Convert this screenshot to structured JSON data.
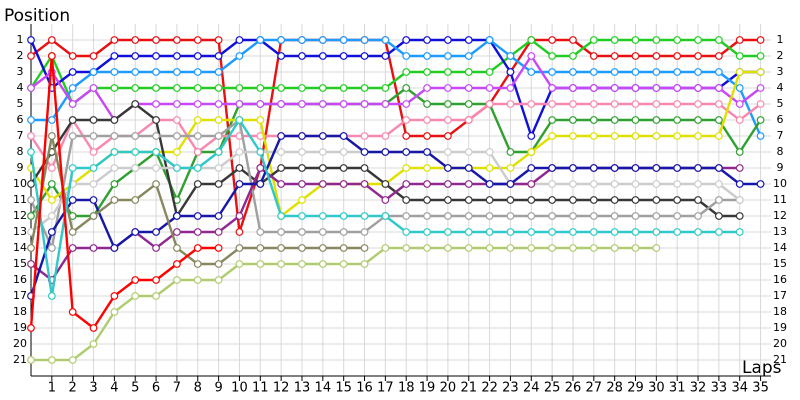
{
  "chart_data": {
    "type": "line",
    "y_label": "Position",
    "x_label": "Laps",
    "x": [
      0,
      1,
      2,
      3,
      4,
      5,
      6,
      7,
      8,
      9,
      10,
      11,
      12,
      13,
      14,
      15,
      16,
      17,
      18,
      19,
      20,
      21,
      22,
      23,
      24,
      25,
      26,
      27,
      28,
      29,
      30,
      31,
      32,
      33,
      34,
      35
    ],
    "xlim": [
      0,
      35.5
    ],
    "xticks": [
      1,
      2,
      3,
      4,
      5,
      6,
      7,
      8,
      9,
      10,
      11,
      12,
      13,
      14,
      15,
      16,
      17,
      18,
      19,
      20,
      21,
      22,
      23,
      24,
      25,
      26,
      27,
      28,
      29,
      30,
      31,
      32,
      33,
      34,
      35
    ],
    "ylim": [
      22,
      0
    ],
    "yticks": [
      1,
      2,
      3,
      4,
      5,
      6,
      7,
      8,
      9,
      10,
      11,
      12,
      13,
      14,
      15,
      16,
      17,
      18,
      19,
      20,
      21
    ],
    "grid": true,
    "series": [
      {
        "color": "#e81010",
        "values": [
          2,
          1,
          2,
          2,
          1,
          1,
          1,
          1,
          1,
          1,
          13,
          9,
          1,
          1,
          1,
          1,
          1,
          1,
          7,
          7,
          7,
          6,
          5,
          3,
          1,
          1,
          1,
          2,
          2,
          2,
          2,
          2,
          2,
          2,
          1,
          1
        ]
      },
      {
        "color": "#22cc22",
        "values": [
          4,
          2,
          5,
          4,
          4,
          4,
          4,
          4,
          4,
          4,
          4,
          4,
          4,
          4,
          4,
          4,
          4,
          4,
          3,
          3,
          3,
          3,
          3,
          2,
          1,
          2,
          2,
          1,
          1,
          1,
          1,
          1,
          1,
          1,
          2,
          2
        ]
      },
      {
        "color": "#1010d8",
        "values": [
          1,
          4,
          3,
          3,
          2,
          2,
          2,
          2,
          2,
          2,
          1,
          1,
          2,
          2,
          2,
          2,
          2,
          2,
          1,
          1,
          1,
          1,
          1,
          3,
          7,
          4,
          4,
          4,
          4,
          4,
          4,
          4,
          4,
          4,
          3,
          3
        ]
      },
      {
        "color": "#1e9bff",
        "values": [
          6,
          6,
          4,
          3,
          3,
          3,
          3,
          3,
          3,
          3,
          2,
          1,
          1,
          1,
          1,
          1,
          1,
          1,
          2,
          2,
          2,
          2,
          1,
          2,
          3,
          3,
          3,
          3,
          3,
          3,
          3,
          3,
          3,
          3,
          4,
          7
        ]
      },
      {
        "color": "#30a030",
        "values": [
          12,
          10,
          12,
          12,
          10,
          9,
          8,
          11,
          8,
          8,
          5,
          5,
          5,
          5,
          5,
          5,
          5,
          5,
          4,
          5,
          5,
          5,
          5,
          8,
          8,
          6,
          6,
          6,
          6,
          6,
          6,
          6,
          6,
          6,
          8,
          6
        ]
      },
      {
        "color": "#c848f8",
        "values": [
          4,
          3,
          5,
          4,
          6,
          5,
          5,
          5,
          5,
          5,
          5,
          5,
          5,
          5,
          5,
          5,
          5,
          5,
          5,
          4,
          4,
          4,
          4,
          4,
          2,
          4,
          4,
          4,
          4,
          4,
          4,
          4,
          4,
          4,
          5,
          4
        ]
      },
      {
        "color": "#f888b0",
        "values": [
          7,
          9,
          6,
          8,
          7,
          7,
          6,
          6,
          8,
          7,
          7,
          7,
          7,
          7,
          7,
          7,
          7,
          7,
          6,
          6,
          6,
          6,
          5,
          5,
          5,
          5,
          5,
          5,
          5,
          5,
          5,
          5,
          5,
          5,
          6,
          5
        ]
      },
      {
        "color": "#e0e000",
        "values": [
          9,
          11,
          10,
          9,
          8,
          8,
          8,
          8,
          6,
          6,
          6,
          6,
          12,
          11,
          10,
          10,
          10,
          10,
          9,
          9,
          9,
          9,
          9,
          9,
          8,
          7,
          7,
          7,
          7,
          7,
          7,
          7,
          7,
          7,
          3,
          3
        ]
      },
      {
        "color": "#383838",
        "values": [
          10,
          8,
          6,
          6,
          6,
          5,
          6,
          12,
          10,
          10,
          9,
          10,
          9,
          9,
          9,
          9,
          9,
          10,
          11,
          11,
          11,
          11,
          11,
          11,
          11,
          11,
          11,
          11,
          11,
          11,
          11,
          11,
          11,
          12,
          12,
          null
        ]
      },
      {
        "color": "#a0a0a0",
        "values": [
          11,
          14,
          7,
          7,
          7,
          7,
          7,
          7,
          7,
          7,
          6,
          13,
          13,
          13,
          13,
          13,
          13,
          12,
          12,
          12,
          12,
          12,
          12,
          12,
          12,
          12,
          12,
          12,
          12,
          12,
          12,
          12,
          12,
          11,
          11,
          null
        ]
      },
      {
        "color": "#cccccc",
        "values": [
          13,
          12,
          10,
          10,
          9,
          9,
          9,
          9,
          9,
          9,
          8,
          8,
          8,
          8,
          8,
          8,
          8,
          8,
          8,
          8,
          8,
          8,
          8,
          10,
          10,
          10,
          10,
          10,
          10,
          10,
          10,
          10,
          10,
          10,
          11,
          null
        ]
      },
      {
        "color": "#902890",
        "values": [
          15,
          16,
          14,
          14,
          14,
          13,
          14,
          13,
          13,
          13,
          12,
          9,
          10,
          10,
          10,
          10,
          10,
          11,
          10,
          10,
          10,
          10,
          10,
          10,
          10,
          9,
          9,
          9,
          9,
          9,
          9,
          9,
          9,
          9,
          9,
          null
        ]
      },
      {
        "color": "#1818a8",
        "values": [
          17,
          13,
          11,
          11,
          14,
          13,
          13,
          12,
          12,
          12,
          10,
          10,
          7,
          7,
          7,
          7,
          8,
          8,
          8,
          8,
          9,
          9,
          10,
          10,
          9,
          9,
          9,
          9,
          9,
          9,
          9,
          9,
          9,
          9,
          10,
          10
        ]
      },
      {
        "color": "#888860",
        "values": [
          14,
          7,
          13,
          12,
          11,
          11,
          10,
          14,
          15,
          15,
          14,
          14,
          14,
          14,
          14,
          14,
          14,
          null,
          null,
          null,
          null,
          null,
          null,
          null,
          null,
          null,
          null,
          null,
          null,
          null,
          null,
          null,
          null,
          null,
          null,
          null
        ]
      },
      {
        "color": "#30c8c8",
        "values": [
          8,
          17,
          9,
          9,
          8,
          8,
          8,
          9,
          9,
          8,
          6,
          8,
          12,
          12,
          12,
          12,
          12,
          12,
          13,
          13,
          13,
          13,
          13,
          13,
          13,
          13,
          13,
          13,
          13,
          13,
          13,
          13,
          13,
          13,
          13,
          null
        ]
      },
      {
        "color": "#b0cc70",
        "values": [
          21,
          21,
          21,
          20,
          18,
          17,
          17,
          16,
          16,
          16,
          15,
          15,
          15,
          15,
          15,
          15,
          15,
          14,
          14,
          14,
          14,
          14,
          14,
          14,
          14,
          14,
          14,
          14,
          14,
          14,
          14,
          null,
          null,
          null,
          null,
          null
        ]
      },
      {
        "color": "#ff0000",
        "values": [
          19,
          2,
          18,
          19,
          17,
          16,
          16,
          15,
          14,
          14,
          null,
          null,
          null,
          null,
          null,
          null,
          null,
          null,
          null,
          null,
          null,
          null,
          null,
          null,
          null,
          null,
          null,
          null,
          null,
          null,
          null,
          null,
          null,
          null,
          null,
          null
        ]
      }
    ]
  }
}
